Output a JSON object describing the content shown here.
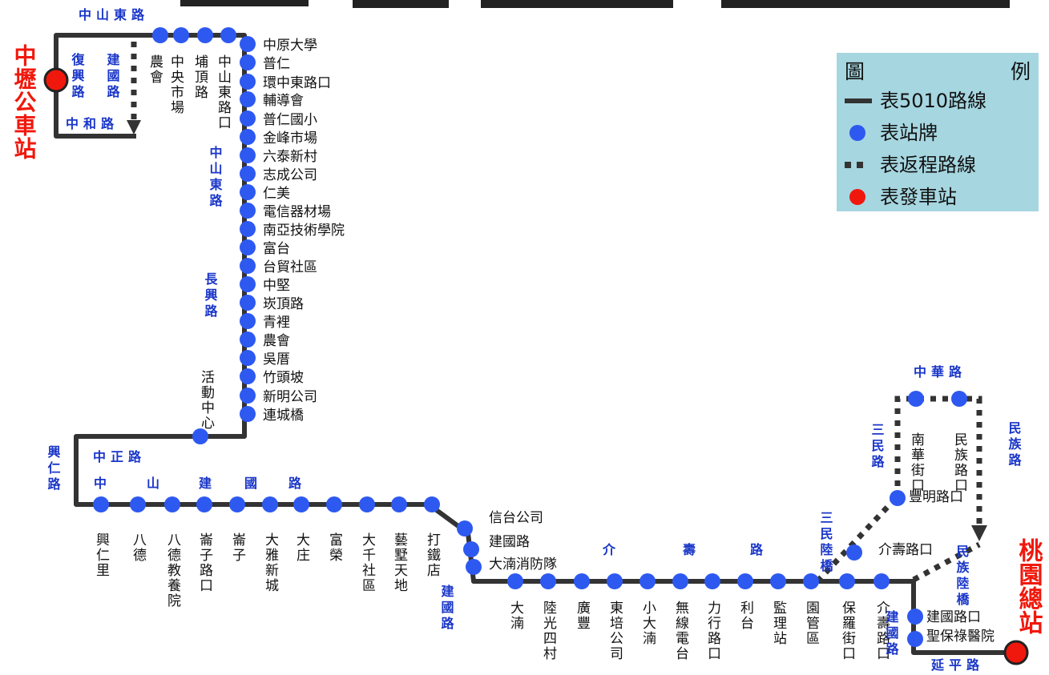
{
  "terminals": {
    "start": "中壢公車站",
    "end": "桃園總站"
  },
  "legend": {
    "title_left": "圖",
    "title_right": "例",
    "items": [
      "表5010路線",
      "表站牌",
      "表返程路線",
      "表發車站"
    ]
  },
  "colors": {
    "route_line": "#333333",
    "stop": "#2e59f0",
    "terminal": "#f0180c",
    "road_label": "#1a36c8",
    "legend_bg": "#a6d6e0"
  },
  "stops": [
    "農會",
    "中央市場",
    "埔頂路",
    "中山東路口",
    "中原大學",
    "普仁",
    "環中東路口",
    "輔導會",
    "普仁國小",
    "金峰市場",
    "六泰新村",
    "志成公司",
    "仁美",
    "電信器材場",
    "南亞技術學院",
    "富台",
    "台貿社區",
    "中堅",
    "崁頂路",
    "青裡",
    "農會",
    "吳厝",
    "竹頭坡",
    "新明公司",
    "連城橋",
    "活動中心",
    "興仁里",
    "八德",
    "八德教養院",
    "崙子路口",
    "崙子",
    "大雅新城",
    "大庄",
    "富榮",
    "大千社區",
    "藝墅天地",
    "打鐵店",
    "信台公司",
    "建國路",
    "大湳消防隊",
    "大湳",
    "陸光四村",
    "廣豐",
    "東培公司",
    "小大湳",
    "無線電台",
    "力行路口",
    "利台",
    "監理站",
    "園管區",
    "保羅街口",
    "介壽路口",
    "介壽路口",
    "豐明路口",
    "南華街口",
    "民族路口",
    "建國路口",
    "聖保祿醫院"
  ],
  "roads": [
    "中山東路",
    "復興路",
    "建國路",
    "中和路",
    "中山東路",
    "長興路",
    "興仁路",
    "中正路",
    "中",
    "山",
    "路",
    "建",
    "國",
    "路",
    "建國路",
    "介",
    "壽",
    "路",
    "三民路",
    "中華路",
    "民族路",
    "三民陸橋",
    "民族陸橋",
    "建國路",
    "延平路"
  ]
}
